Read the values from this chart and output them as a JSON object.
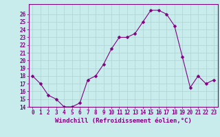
{
  "x": [
    0,
    1,
    2,
    3,
    4,
    5,
    6,
    7,
    8,
    9,
    10,
    11,
    12,
    13,
    14,
    15,
    16,
    17,
    18,
    19,
    20,
    21,
    22,
    23
  ],
  "y": [
    18,
    17,
    15.5,
    15,
    14,
    14,
    14.5,
    17.5,
    18,
    19.5,
    21.5,
    23,
    23,
    23.5,
    25,
    26.5,
    26.5,
    26,
    24.5,
    20.5,
    16.5,
    18,
    17,
    17.5
  ],
  "line_color": "#800080",
  "marker_color": "#800080",
  "bg_color": "#c8ecec",
  "grid_color": "#b0d0d0",
  "xlabel": "Windchill (Refroidissement éolien,°C)",
  "ylim": [
    14,
    27
  ],
  "xlim": [
    -0.5,
    23.5
  ],
  "yticks": [
    14,
    15,
    16,
    17,
    18,
    19,
    20,
    21,
    22,
    23,
    24,
    25,
    26
  ],
  "xticks": [
    0,
    1,
    2,
    3,
    4,
    5,
    6,
    7,
    8,
    9,
    10,
    11,
    12,
    13,
    14,
    15,
    16,
    17,
    18,
    19,
    20,
    21,
    22,
    23
  ],
  "tick_fontsize": 5.5,
  "xlabel_fontsize": 6.5,
  "marker_size": 2.5,
  "line_width": 0.8,
  "spine_color": "#800080",
  "tick_color": "#800080",
  "label_color": "#800080"
}
